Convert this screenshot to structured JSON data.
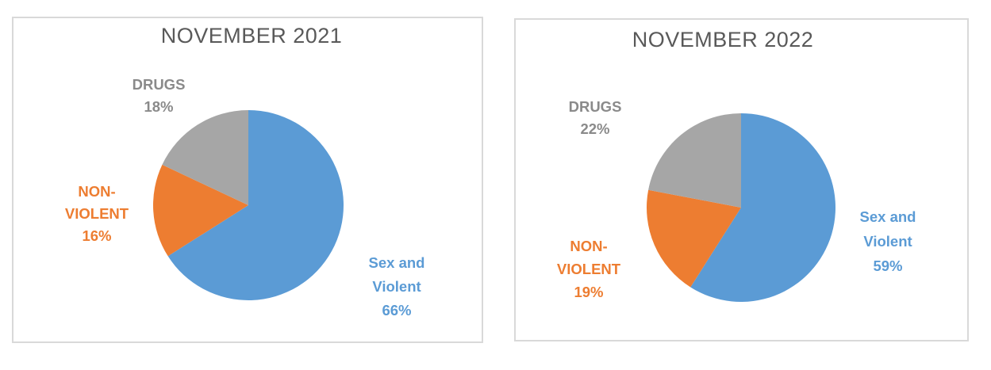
{
  "page": {
    "background": "#ffffff",
    "panel_border_color": "#d9d9d9"
  },
  "chart_data": [
    {
      "type": "pie",
      "title": "NOVEMBER 2021",
      "title_color": "#595959",
      "categories": [
        "Sex and Violent",
        "NON-VIOLENT",
        "DRUGS"
      ],
      "values": [
        66,
        16,
        18
      ],
      "unit": "%",
      "colors": [
        "#5B9BD5",
        "#ED7D31",
        "#A6A6A6"
      ],
      "label_colors": [
        "#5B9BD5",
        "#ED7D31",
        "#8A8A8A"
      ],
      "start_angle_deg": 0,
      "direction": "clockwise",
      "legend": "none",
      "data_labels": {
        "sex_violent": [
          "Sex and",
          "Violent",
          "66%"
        ],
        "non_violent": [
          "NON-",
          "VIOLENT",
          "16%"
        ],
        "drugs": [
          "DRUGS",
          "18%"
        ]
      }
    },
    {
      "type": "pie",
      "title": "NOVEMBER 2022",
      "title_color": "#595959",
      "categories": [
        "Sex and Violent",
        "NON-VIOLENT",
        "DRUGS"
      ],
      "values": [
        59,
        19,
        22
      ],
      "unit": "%",
      "colors": [
        "#5B9BD5",
        "#ED7D31",
        "#A6A6A6"
      ],
      "label_colors": [
        "#5B9BD5",
        "#ED7D31",
        "#8A8A8A"
      ],
      "start_angle_deg": 0,
      "direction": "clockwise",
      "legend": "none",
      "data_labels": {
        "sex_violent": [
          "Sex and",
          "Violent",
          "59%"
        ],
        "non_violent": [
          "NON-",
          "VIOLENT",
          "19%"
        ],
        "drugs": [
          "DRUGS",
          "22%"
        ]
      }
    }
  ]
}
